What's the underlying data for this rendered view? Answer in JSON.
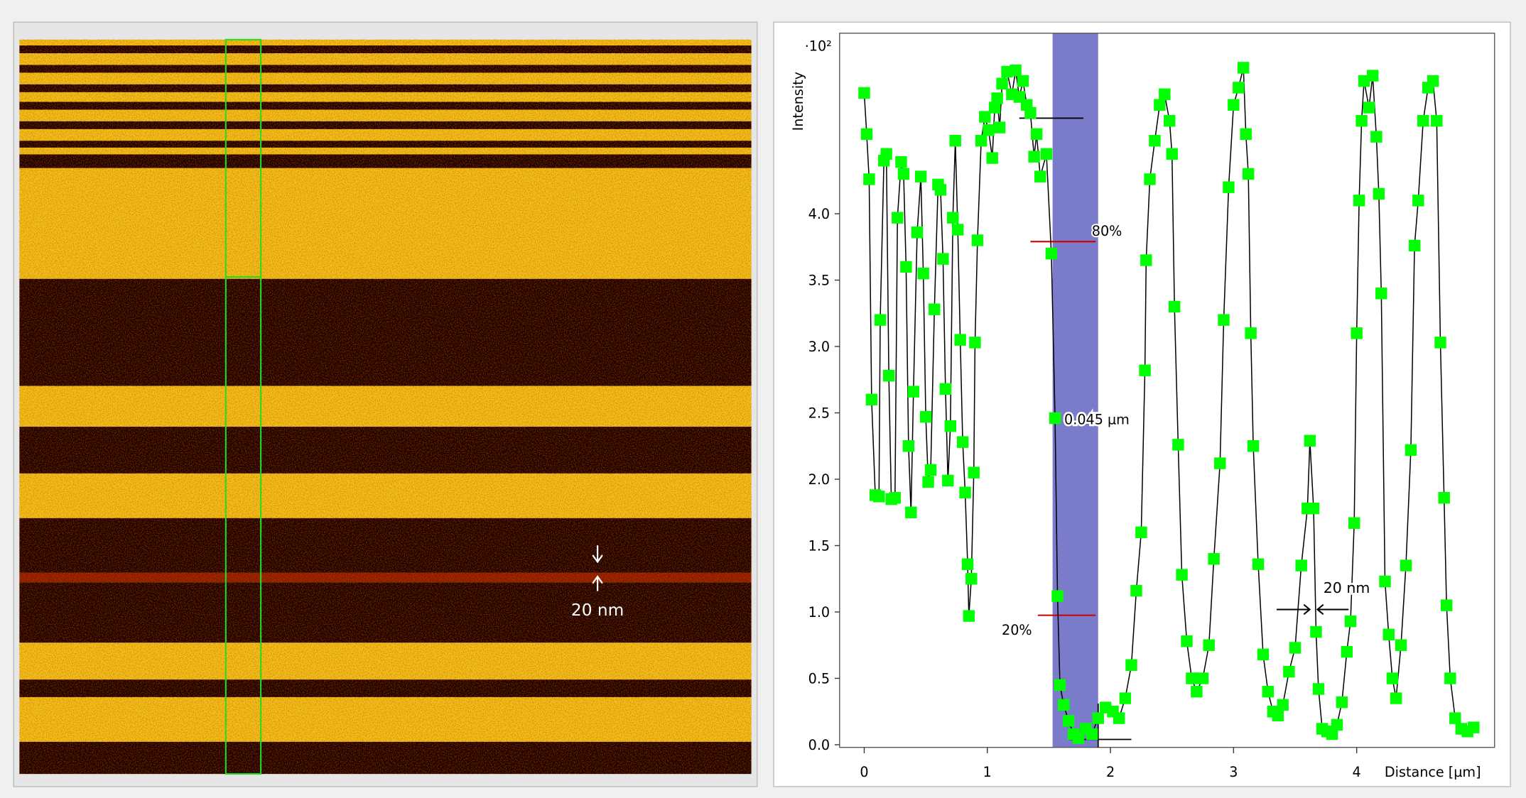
{
  "image_panel": {
    "annotation": "20 nm"
  },
  "chart_data": {
    "type": "line",
    "y_label": "Intensity",
    "y_scale_label": "·10²",
    "x_label": "Distance [µm]",
    "marker_color": "#00ff00",
    "line_color": "#000000",
    "highlight_color": "#7b7bcc",
    "x": [
      0.0,
      0.02,
      0.04,
      0.06,
      0.09,
      0.12,
      0.13,
      0.16,
      0.18,
      0.2,
      0.22,
      0.25,
      0.27,
      0.3,
      0.32,
      0.34,
      0.36,
      0.38,
      0.4,
      0.43,
      0.46,
      0.48,
      0.5,
      0.52,
      0.54,
      0.57,
      0.6,
      0.62,
      0.64,
      0.66,
      0.68,
      0.7,
      0.72,
      0.74,
      0.76,
      0.78,
      0.8,
      0.82,
      0.84,
      0.85,
      0.87,
      0.89,
      0.9,
      0.92,
      0.95,
      0.98,
      1.01,
      1.04,
      1.06,
      1.08,
      1.1,
      1.12,
      1.16,
      1.2,
      1.23,
      1.26,
      1.29,
      1.32,
      1.35,
      1.38,
      1.4,
      1.43,
      1.48,
      1.52,
      1.55,
      1.57,
      1.59,
      1.62,
      1.66,
      1.7,
      1.74,
      1.8,
      1.85,
      1.9,
      1.96,
      2.02,
      2.07,
      2.12,
      2.17,
      2.21,
      2.25,
      2.28,
      2.29,
      2.32,
      2.36,
      2.4,
      2.44,
      2.48,
      2.5,
      2.52,
      2.55,
      2.58,
      2.62,
      2.66,
      2.7,
      2.75,
      2.8,
      2.84,
      2.89,
      2.92,
      2.96,
      3.0,
      3.04,
      3.08,
      3.1,
      3.12,
      3.14,
      3.16,
      3.2,
      3.24,
      3.28,
      3.32,
      3.36,
      3.4,
      3.45,
      3.5,
      3.55,
      3.6,
      3.62,
      3.65,
      3.67,
      3.69,
      3.72,
      3.76,
      3.8,
      3.84,
      3.88,
      3.92,
      3.95,
      3.98,
      4.0,
      4.02,
      4.04,
      4.06,
      4.1,
      4.13,
      4.16,
      4.18,
      4.2,
      4.23,
      4.26,
      4.29,
      4.32,
      4.36,
      4.4,
      4.44,
      4.47,
      4.5,
      4.54,
      4.58,
      4.62,
      4.65,
      4.68,
      4.71,
      4.73,
      4.76,
      4.8,
      4.85,
      4.9,
      4.95
    ],
    "values": [
      4.91,
      4.6,
      4.26,
      2.6,
      1.88,
      1.87,
      3.2,
      4.4,
      4.45,
      2.78,
      1.85,
      1.86,
      3.97,
      4.39,
      4.3,
      3.6,
      2.25,
      1.75,
      2.66,
      3.86,
      4.28,
      3.55,
      2.47,
      1.98,
      2.07,
      3.28,
      4.22,
      4.18,
      3.66,
      2.68,
      1.99,
      2.4,
      3.97,
      4.55,
      3.88,
      3.05,
      2.28,
      1.9,
      1.36,
      0.97,
      1.25,
      2.05,
      3.03,
      3.8,
      4.55,
      4.73,
      4.63,
      4.42,
      4.8,
      4.87,
      4.65,
      4.98,
      5.07,
      4.9,
      5.08,
      4.88,
      5.0,
      4.82,
      4.76,
      4.43,
      4.6,
      4.28,
      4.45,
      3.7,
      2.46,
      1.12,
      0.45,
      0.3,
      0.18,
      0.08,
      0.05,
      0.12,
      0.08,
      0.2,
      0.28,
      0.25,
      0.2,
      0.35,
      0.6,
      1.16,
      1.6,
      2.82,
      3.65,
      4.26,
      4.55,
      4.82,
      4.9,
      4.7,
      4.45,
      3.3,
      2.26,
      1.28,
      0.78,
      0.5,
      0.4,
      0.5,
      0.75,
      1.4,
      2.12,
      3.2,
      4.2,
      4.82,
      4.95,
      5.1,
      4.6,
      4.3,
      3.1,
      2.25,
      1.36,
      0.68,
      0.4,
      0.25,
      0.22,
      0.3,
      0.55,
      0.73,
      1.35,
      1.78,
      2.29,
      1.78,
      0.85,
      0.42,
      0.12,
      0.1,
      0.08,
      0.15,
      0.32,
      0.7,
      0.93,
      1.67,
      3.1,
      4.1,
      4.7,
      5.0,
      4.8,
      5.04,
      4.58,
      4.15,
      3.4,
      1.23,
      0.83,
      0.5,
      0.35,
      0.75,
      1.35,
      2.22,
      3.76,
      4.1,
      4.7,
      4.95,
      5.0,
      4.7,
      3.03,
      1.86,
      1.05,
      0.5,
      0.2,
      0.12,
      0.1,
      0.13
    ],
    "xlim": [
      -0.2,
      5.12
    ],
    "ylim": [
      -0.02,
      5.36
    ],
    "xticks": [
      0,
      1,
      2,
      3,
      4
    ],
    "yticks": [
      {
        "value": 0,
        "label": "0.0"
      },
      0.5,
      {
        "value": 1,
        "label": "1.0"
      },
      1.5,
      {
        "value": 2,
        "label": "2.0"
      },
      2.5,
      {
        "value": 3,
        "label": "3.0"
      },
      3.5,
      {
        "value": 4,
        "label": "4.0"
      }
    ],
    "highlight_range": [
      1.53,
      1.9
    ],
    "level_lines": [
      {
        "label": "80%",
        "y": 3.79,
        "x": [
          1.35,
          1.88
        ]
      },
      {
        "label": "20%",
        "y": 0.975,
        "x": [
          1.41,
          1.88
        ]
      }
    ],
    "reference_lines": [
      {
        "y": 4.72,
        "x": [
          1.26,
          1.78
        ]
      },
      {
        "y": 0.04,
        "x": [
          1.66,
          2.17
        ]
      }
    ],
    "width_label": {
      "label": "0.045 µm",
      "y": 2.45
    },
    "pitch_label": {
      "label": "20 nm",
      "x": 3.65,
      "y": 1.18
    }
  }
}
